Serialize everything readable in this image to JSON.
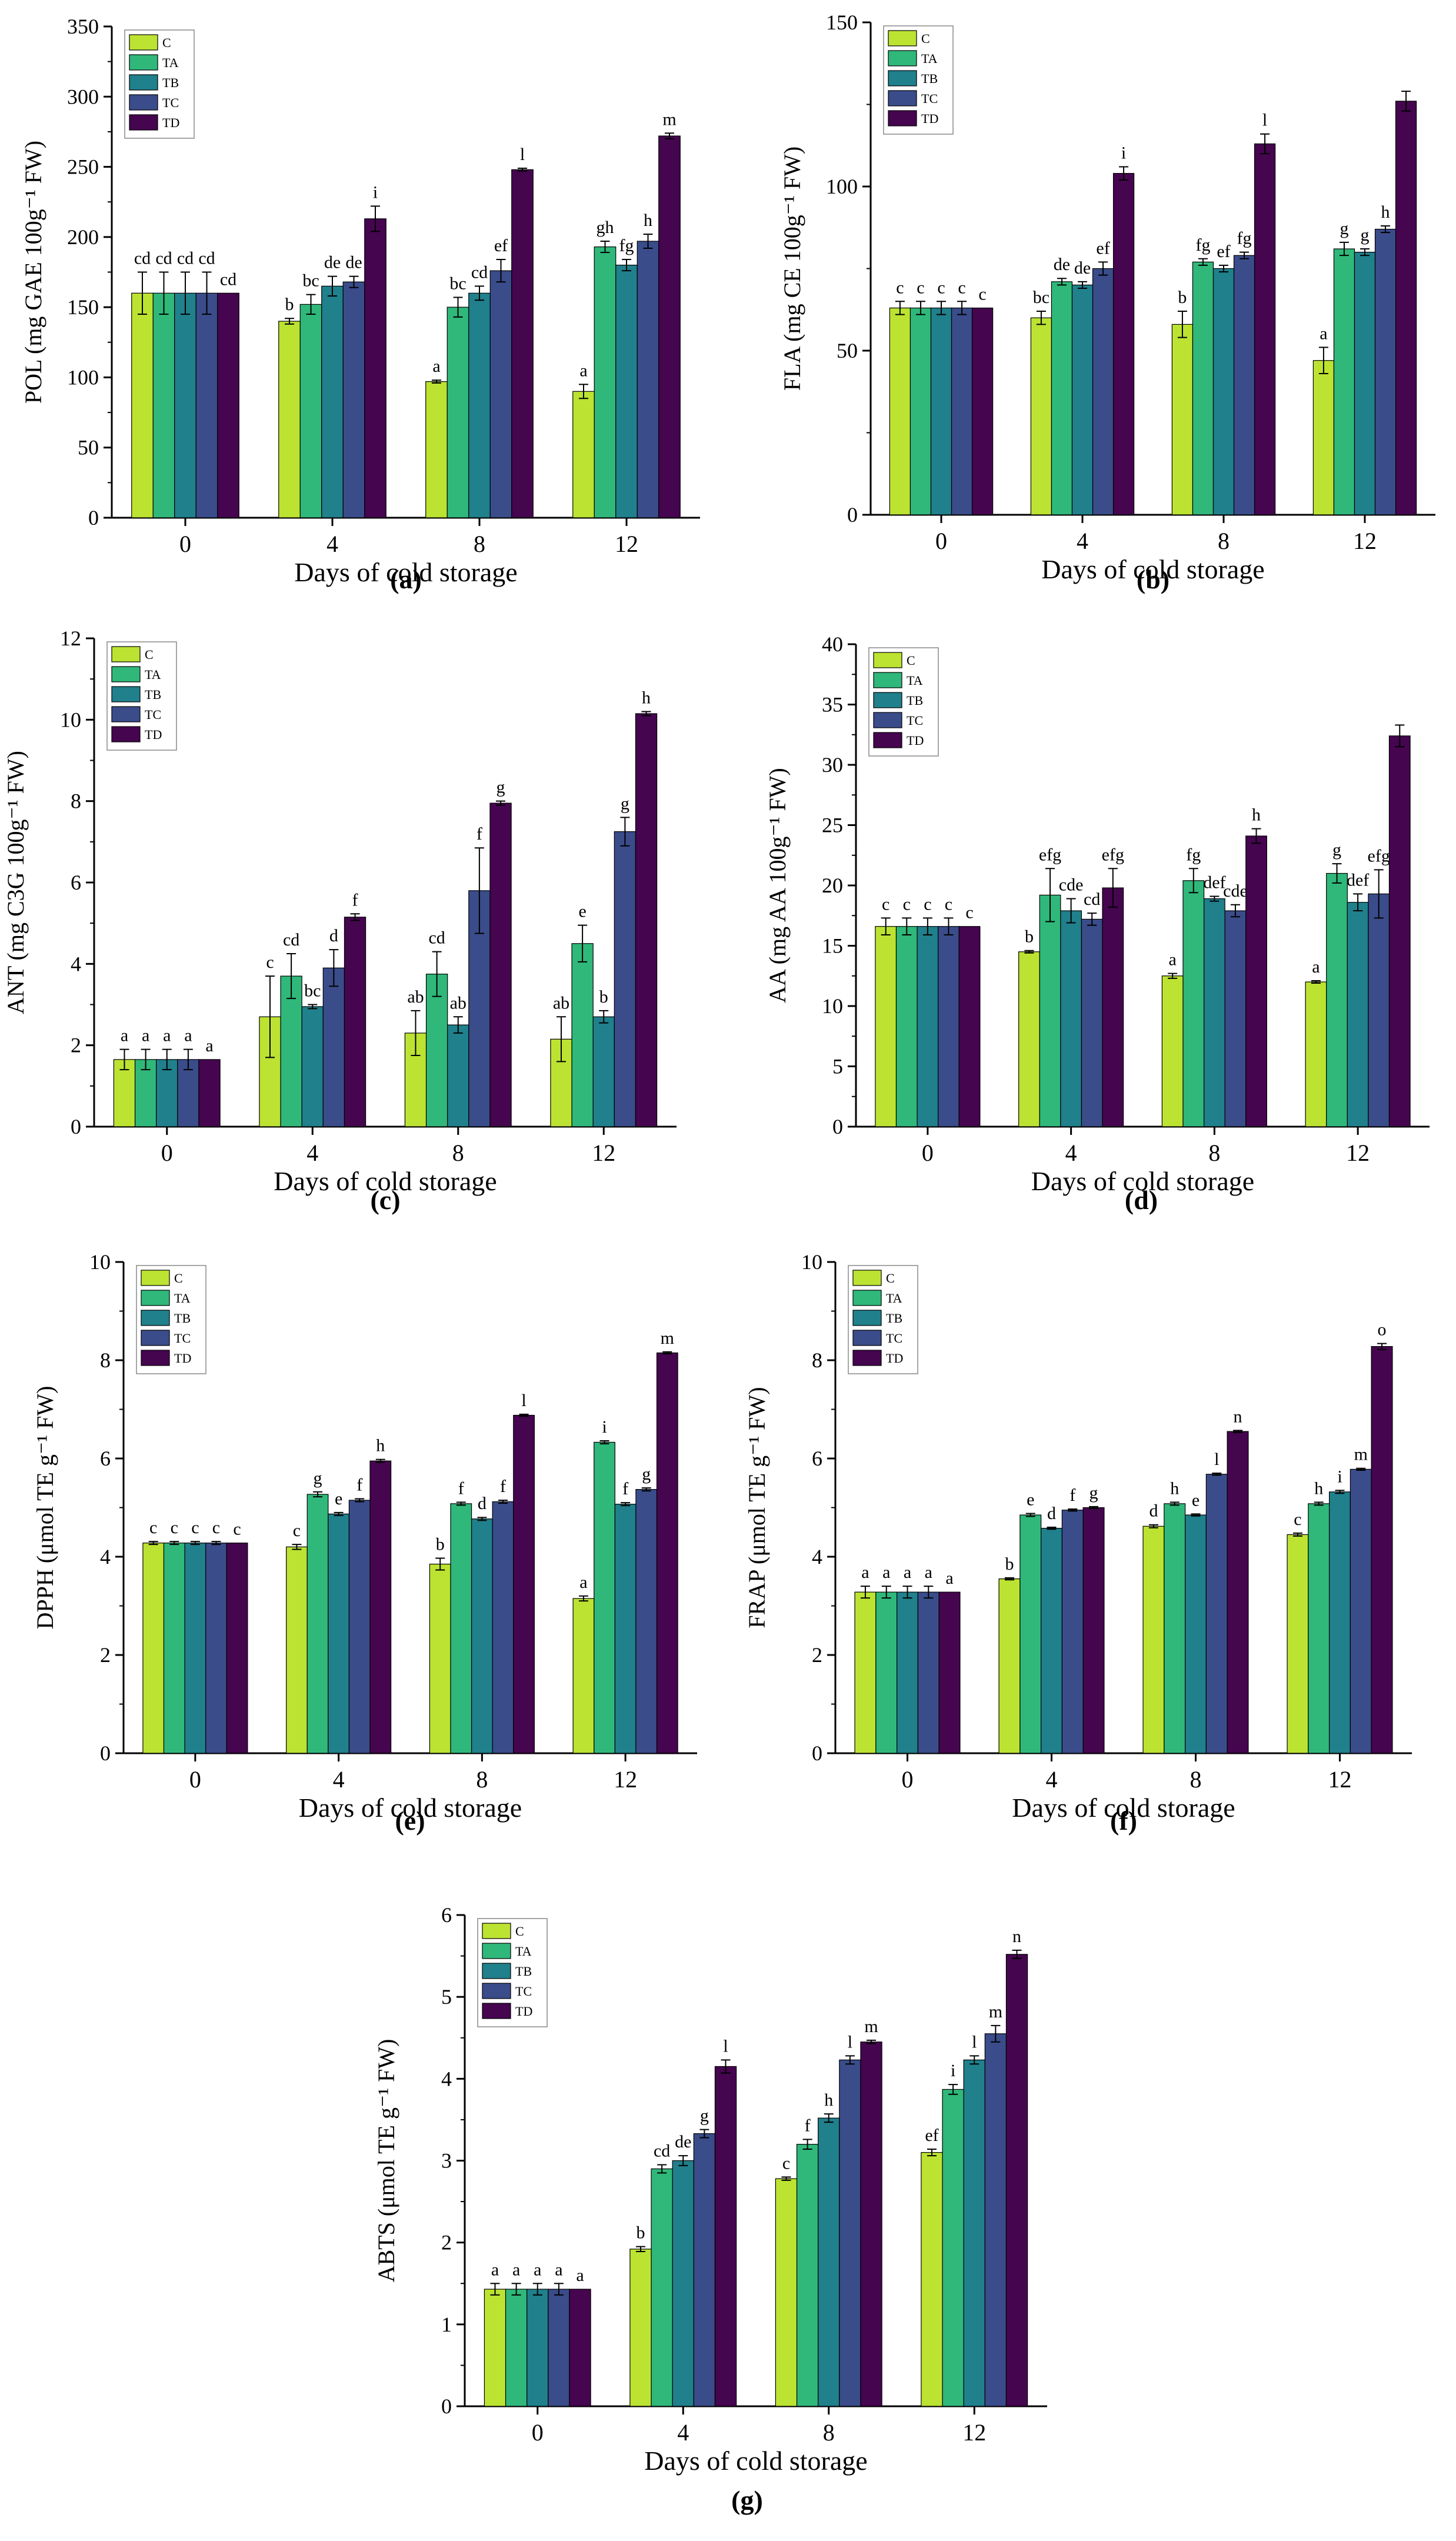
{
  "colors": {
    "C": "#bce332",
    "TA": "#2fb87a",
    "TB": "#20808c",
    "TC": "#3a4c8a",
    "TD": "#45054f"
  },
  "chart_data": [
    {
      "type": "bar",
      "panel_label": "(a)",
      "title": "",
      "xlabel": "Days of cold storage",
      "ylabel": "POL (mg GAE 100g⁻¹ FW)",
      "categories": [
        "0",
        "4",
        "8",
        "12"
      ],
      "ylim": [
        0,
        350
      ],
      "yticks": [
        "0",
        "50",
        "100",
        "150",
        "200",
        "250",
        "300",
        "350"
      ],
      "legend": [
        "C",
        "TA",
        "TB",
        "TC",
        "TD"
      ],
      "legend_position": "top-left",
      "series": [
        {
          "name": "C",
          "values": [
            160,
            140,
            97,
            90
          ],
          "errors": [
            15,
            2,
            1,
            5
          ],
          "letters": [
            "cd",
            "b",
            "a",
            "a"
          ]
        },
        {
          "name": "TA",
          "values": [
            160,
            152,
            150,
            193
          ],
          "errors": [
            15,
            7,
            7,
            4
          ],
          "letters": [
            "cd",
            "bc",
            "bc",
            "gh"
          ]
        },
        {
          "name": "TB",
          "values": [
            160,
            165,
            160,
            180
          ],
          "errors": [
            15,
            7,
            5,
            4
          ],
          "letters": [
            "cd",
            "de",
            "cd",
            "fg"
          ]
        },
        {
          "name": "TC",
          "values": [
            160,
            168,
            176,
            197
          ],
          "errors": [
            15,
            4,
            8,
            5
          ],
          "letters": [
            "cd",
            "de",
            "ef",
            "h"
          ]
        },
        {
          "name": "TD",
          "values": [
            160,
            213,
            248,
            272
          ],
          "errors": [
            0,
            9,
            1,
            2
          ],
          "letters": [
            "cd",
            "i",
            "l",
            "m"
          ]
        }
      ]
    },
    {
      "type": "bar",
      "panel_label": "(b)",
      "title": "",
      "xlabel": "Days of cold storage",
      "ylabel": "FLA (mg CE 100g⁻¹ FW)",
      "categories": [
        "0",
        "4",
        "8",
        "12"
      ],
      "ylim": [
        0,
        150
      ],
      "yticks": [
        "0",
        "50",
        "100",
        "150"
      ],
      "legend": [
        "C",
        "TA",
        "TB",
        "TC",
        "TD"
      ],
      "legend_position": "top-left",
      "series": [
        {
          "name": "C",
          "values": [
            63,
            60,
            58,
            47
          ],
          "errors": [
            2,
            2,
            4,
            4
          ],
          "letters": [
            "c",
            "bc",
            "b",
            "a"
          ]
        },
        {
          "name": "TA",
          "values": [
            63,
            71,
            77,
            81
          ],
          "errors": [
            2,
            1,
            1,
            2
          ],
          "letters": [
            "c",
            "de",
            "fg",
            "g"
          ]
        },
        {
          "name": "TB",
          "values": [
            63,
            70,
            75,
            80
          ],
          "errors": [
            2,
            1,
            1,
            1
          ],
          "letters": [
            "c",
            "de",
            "ef",
            "g"
          ]
        },
        {
          "name": "TC",
          "values": [
            63,
            75,
            79,
            87
          ],
          "errors": [
            2,
            2,
            1,
            1
          ],
          "letters": [
            "c",
            "ef",
            "fg",
            "h"
          ]
        },
        {
          "name": "TD",
          "values": [
            63,
            104,
            113,
            126
          ],
          "errors": [
            0,
            2,
            3,
            3
          ],
          "letters": [
            "c",
            "i",
            "l",
            ""
          ]
        }
      ]
    },
    {
      "type": "bar",
      "panel_label": "(c)",
      "title": "",
      "xlabel": "Days of cold storage",
      "ylabel": "ANT (mg C3G 100g⁻¹ FW)",
      "categories": [
        "0",
        "4",
        "8",
        "12"
      ],
      "ylim": [
        0,
        12
      ],
      "yticks": [
        "0",
        "2",
        "4",
        "6",
        "8",
        "10",
        "12"
      ],
      "legend": [
        "C",
        "TA",
        "TB",
        "TC",
        "TD"
      ],
      "legend_position": "top-left",
      "series": [
        {
          "name": "C",
          "values": [
            1.65,
            2.7,
            2.3,
            2.15
          ],
          "errors": [
            0.25,
            1.0,
            0.55,
            0.55
          ],
          "letters": [
            "a",
            "c",
            "ab",
            "ab"
          ]
        },
        {
          "name": "TA",
          "values": [
            1.65,
            3.7,
            3.75,
            4.5
          ],
          "errors": [
            0.25,
            0.55,
            0.55,
            0.45
          ],
          "letters": [
            "a",
            "cd",
            "cd",
            "e"
          ]
        },
        {
          "name": "TB",
          "values": [
            1.65,
            2.95,
            2.5,
            2.7
          ],
          "errors": [
            0.25,
            0.05,
            0.2,
            0.15
          ],
          "letters": [
            "a",
            "bc",
            "ab",
            "b"
          ]
        },
        {
          "name": "TC",
          "values": [
            1.65,
            3.9,
            5.8,
            7.25
          ],
          "errors": [
            0.25,
            0.45,
            1.05,
            0.35
          ],
          "letters": [
            "a",
            "d",
            "f",
            "g"
          ]
        },
        {
          "name": "TD",
          "values": [
            1.65,
            5.15,
            7.95,
            10.15
          ],
          "errors": [
            0,
            0.08,
            0.05,
            0.05
          ],
          "letters": [
            "a",
            "f",
            "g",
            "h"
          ]
        }
      ]
    },
    {
      "type": "bar",
      "panel_label": "(d)",
      "title": "",
      "xlabel": "Days of cold storage",
      "ylabel": "AA (mg AA 100g⁻¹ FW)",
      "categories": [
        "0",
        "4",
        "8",
        "12"
      ],
      "ylim": [
        0,
        40
      ],
      "yticks": [
        "0",
        "5",
        "10",
        "15",
        "20",
        "25",
        "30",
        "35",
        "40"
      ],
      "legend": [
        "C",
        "TA",
        "TB",
        "TC",
        "TD"
      ],
      "legend_position": "top-left",
      "series": [
        {
          "name": "C",
          "values": [
            16.6,
            14.5,
            12.5,
            12.0
          ],
          "errors": [
            0.7,
            0.1,
            0.2,
            0.1
          ],
          "letters": [
            "c",
            "b",
            "a",
            "a"
          ]
        },
        {
          "name": "TA",
          "values": [
            16.6,
            19.2,
            20.4,
            21.0
          ],
          "errors": [
            0.7,
            2.2,
            1.0,
            0.8
          ],
          "letters": [
            "c",
            "efg",
            "fg",
            "g"
          ]
        },
        {
          "name": "TB",
          "values": [
            16.6,
            17.9,
            18.9,
            18.6
          ],
          "errors": [
            0.7,
            1.0,
            0.2,
            0.7
          ],
          "letters": [
            "c",
            "cde",
            "def",
            "def"
          ]
        },
        {
          "name": "TC",
          "values": [
            16.6,
            17.2,
            17.9,
            19.3
          ],
          "errors": [
            0.7,
            0.5,
            0.5,
            2.0
          ],
          "letters": [
            "c",
            "cd",
            "cde",
            "efg"
          ]
        },
        {
          "name": "TD",
          "values": [
            16.6,
            19.8,
            24.1,
            32.4
          ],
          "errors": [
            0,
            1.6,
            0.6,
            0.9
          ],
          "letters": [
            "c",
            "efg",
            "h",
            ""
          ]
        }
      ]
    },
    {
      "type": "bar",
      "panel_label": "(e)",
      "title": "",
      "xlabel": "Days of cold storage",
      "ylabel": "DPPH (μmol TE g⁻¹ FW)",
      "categories": [
        "0",
        "4",
        "8",
        "12"
      ],
      "ylim": [
        0,
        10
      ],
      "yticks": [
        "0",
        "2",
        "4",
        "6",
        "8",
        "10"
      ],
      "legend": [
        "C",
        "TA",
        "TB",
        "TC",
        "TD"
      ],
      "legend_position": "top-left",
      "series": [
        {
          "name": "C",
          "values": [
            4.28,
            4.2,
            3.85,
            3.15
          ],
          "errors": [
            0.03,
            0.05,
            0.12,
            0.05
          ],
          "letters": [
            "c",
            "c",
            "b",
            "a"
          ]
        },
        {
          "name": "TA",
          "values": [
            4.28,
            5.27,
            5.08,
            6.33
          ],
          "errors": [
            0.03,
            0.05,
            0.03,
            0.03
          ],
          "letters": [
            "c",
            "g",
            "f",
            "i"
          ]
        },
        {
          "name": "TB",
          "values": [
            4.28,
            4.87,
            4.77,
            5.07
          ],
          "errors": [
            0.03,
            0.03,
            0.03,
            0.03
          ],
          "letters": [
            "c",
            "e",
            "d",
            "f"
          ]
        },
        {
          "name": "TC",
          "values": [
            4.28,
            5.15,
            5.12,
            5.37
          ],
          "errors": [
            0.03,
            0.03,
            0.03,
            0.03
          ],
          "letters": [
            "c",
            "f",
            "f",
            "g"
          ]
        },
        {
          "name": "TD",
          "values": [
            4.28,
            5.95,
            6.88,
            8.15
          ],
          "errors": [
            0,
            0.03,
            0.02,
            0.02
          ],
          "letters": [
            "c",
            "h",
            "l",
            "m"
          ]
        }
      ]
    },
    {
      "type": "bar",
      "panel_label": "(f)",
      "title": "",
      "xlabel": "Days of cold storage",
      "ylabel": "FRAP (μmol TE g⁻¹ FW)",
      "categories": [
        "0",
        "4",
        "8",
        "12"
      ],
      "ylim": [
        0,
        10
      ],
      "yticks": [
        "0",
        "2",
        "4",
        "6",
        "8",
        "10"
      ],
      "legend": [
        "C",
        "TA",
        "TB",
        "TC",
        "TD"
      ],
      "legend_position": "top-left",
      "series": [
        {
          "name": "C",
          "values": [
            3.28,
            3.55,
            4.62,
            4.45
          ],
          "errors": [
            0.12,
            0.02,
            0.03,
            0.03
          ],
          "letters": [
            "a",
            "b",
            "d",
            "c"
          ]
        },
        {
          "name": "TA",
          "values": [
            3.28,
            4.85,
            5.08,
            5.08
          ],
          "errors": [
            0.12,
            0.03,
            0.03,
            0.03
          ],
          "letters": [
            "a",
            "e",
            "h",
            "h"
          ]
        },
        {
          "name": "TB",
          "values": [
            3.28,
            4.58,
            4.85,
            5.32
          ],
          "errors": [
            0.12,
            0.02,
            0.02,
            0.03
          ],
          "letters": [
            "a",
            "d",
            "e",
            "i"
          ]
        },
        {
          "name": "TC",
          "values": [
            3.28,
            4.95,
            5.68,
            5.78
          ],
          "errors": [
            0.12,
            0.02,
            0.02,
            0.02
          ],
          "letters": [
            "a",
            "f",
            "l",
            "m"
          ]
        },
        {
          "name": "TD",
          "values": [
            3.28,
            5.0,
            6.55,
            8.28
          ],
          "errors": [
            0,
            0.02,
            0.02,
            0.06
          ],
          "letters": [
            "a",
            "g",
            "n",
            "o"
          ]
        }
      ]
    },
    {
      "type": "bar",
      "panel_label": "(g)",
      "title": "",
      "xlabel": "Days of cold storage",
      "ylabel": "ABTS (μmol TE g⁻¹ FW)",
      "categories": [
        "0",
        "4",
        "8",
        "12"
      ],
      "ylim": [
        0,
        6
      ],
      "yticks": [
        "0",
        "1",
        "2",
        "3",
        "4",
        "5",
        "6"
      ],
      "legend": [
        "C",
        "TA",
        "TB",
        "TC",
        "TD"
      ],
      "legend_position": "top-left",
      "series": [
        {
          "name": "C",
          "values": [
            1.43,
            1.92,
            2.78,
            3.1
          ],
          "errors": [
            0.07,
            0.03,
            0.02,
            0.04
          ],
          "letters": [
            "a",
            "b",
            "c",
            "ef"
          ]
        },
        {
          "name": "TA",
          "values": [
            1.43,
            2.9,
            3.2,
            3.87
          ],
          "errors": [
            0.07,
            0.05,
            0.06,
            0.06
          ],
          "letters": [
            "a",
            "cd",
            "f",
            "i"
          ]
        },
        {
          "name": "TB",
          "values": [
            1.43,
            3.0,
            3.52,
            4.23
          ],
          "errors": [
            0.07,
            0.06,
            0.05,
            0.05
          ],
          "letters": [
            "a",
            "de",
            "h",
            "l"
          ]
        },
        {
          "name": "TC",
          "values": [
            1.43,
            3.33,
            4.23,
            4.55
          ],
          "errors": [
            0.07,
            0.05,
            0.05,
            0.1
          ],
          "letters": [
            "a",
            "g",
            "l",
            "m"
          ]
        },
        {
          "name": "TD",
          "values": [
            1.43,
            4.15,
            4.45,
            5.52
          ],
          "errors": [
            0,
            0.08,
            0.02,
            0.05
          ],
          "letters": [
            "a",
            "l",
            "m",
            "n"
          ]
        }
      ]
    }
  ]
}
